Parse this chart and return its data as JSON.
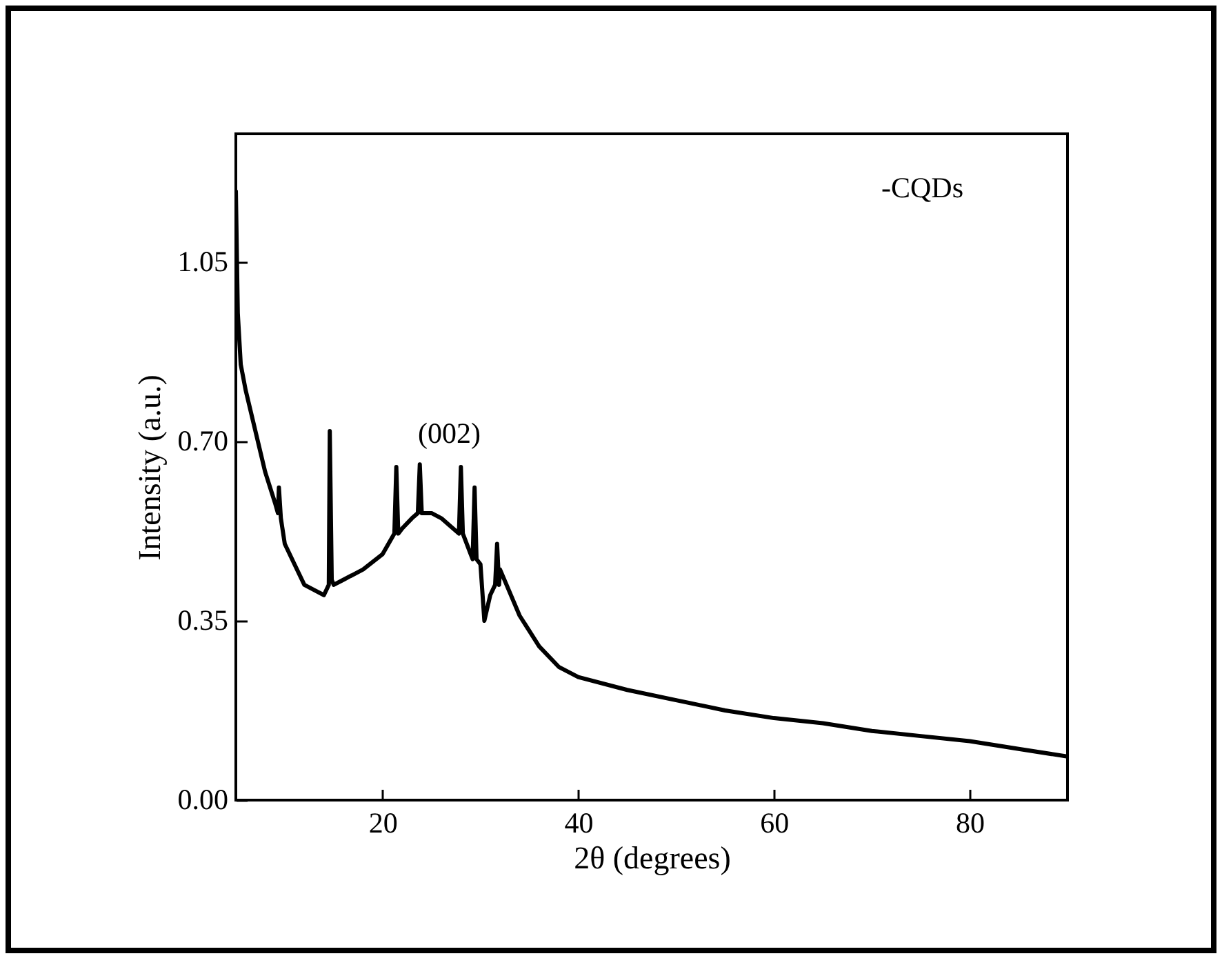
{
  "chart_data": {
    "type": "line",
    "xlabel": "2θ (degrees)",
    "ylabel": "Intensity (a.u.)",
    "annotations": [
      "(002)",
      "-CQDs"
    ],
    "xlim": [
      5,
      90
    ],
    "xticks": [
      20,
      40,
      60,
      80
    ],
    "ylim": [
      0,
      1.3
    ],
    "yticks": [
      {
        "value": 0,
        "label": "0.00"
      },
      {
        "value": 0.35,
        "label": "0.35"
      },
      {
        "value": 0.7,
        "label": "0.70"
      },
      {
        "value": 1.05,
        "label": "1.05"
      }
    ],
    "grid": false,
    "marker": "none",
    "line_style": "solid",
    "series": [
      {
        "color": "#000000",
        "x": [
          5,
          5.2,
          5.5,
          6,
          7,
          8,
          9,
          9.3,
          9.4,
          9.6,
          10,
          11,
          12,
          13,
          14,
          14.5,
          14.6,
          14.8,
          15,
          16,
          18,
          20,
          21.2,
          21.4,
          21.6,
          22,
          23,
          23.6,
          23.8,
          24,
          25,
          26,
          27.8,
          28,
          28.2,
          29,
          29.2,
          29.4,
          29.6,
          30,
          30.4,
          31,
          31.5,
          31.7,
          31.9,
          32,
          34,
          36,
          38,
          40,
          45,
          50,
          55,
          60,
          65,
          70,
          75,
          80,
          85,
          90
        ],
        "values": [
          1.19,
          0.95,
          0.85,
          0.8,
          0.72,
          0.64,
          0.58,
          0.56,
          0.61,
          0.55,
          0.5,
          0.46,
          0.42,
          0.41,
          0.4,
          0.42,
          0.72,
          0.43,
          0.42,
          0.43,
          0.45,
          0.48,
          0.52,
          0.65,
          0.52,
          0.53,
          0.55,
          0.56,
          0.655,
          0.56,
          0.56,
          0.55,
          0.52,
          0.65,
          0.52,
          0.48,
          0.47,
          0.61,
          0.47,
          0.46,
          0.35,
          0.4,
          0.42,
          0.5,
          0.42,
          0.45,
          0.36,
          0.3,
          0.26,
          0.24,
          0.215,
          0.195,
          0.175,
          0.16,
          0.15,
          0.135,
          0.125,
          0.115,
          0.1,
          0.085
        ]
      }
    ]
  }
}
